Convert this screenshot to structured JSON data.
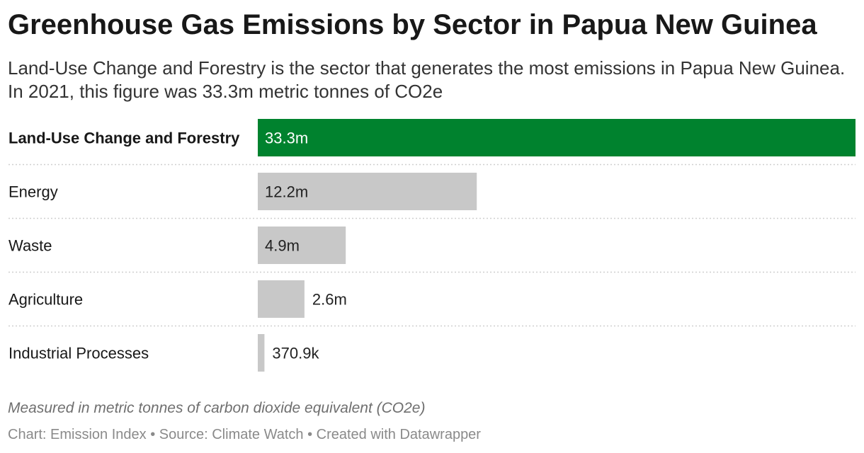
{
  "header": {
    "title": "Greenhouse Gas Emissions by Sector in Papua New Guinea",
    "subtitle": "Land-Use Change and Forestry is the sector that generates the most emissions in Papua New Guinea. In 2021, this figure was 33.3m metric tonnes of CO2e"
  },
  "chart_data": {
    "type": "bar",
    "orientation": "horizontal",
    "categories": [
      "Land-Use Change and Forestry",
      "Energy",
      "Waste",
      "Agriculture",
      "Industrial Processes"
    ],
    "values": [
      33300000,
      12200000,
      4900000,
      2600000,
      370900
    ],
    "value_labels": [
      "33.3m",
      "12.2m",
      "4.9m",
      "2.6m",
      "370.9k"
    ],
    "highlighted_category": "Land-Use Change and Forestry",
    "colors": {
      "highlight": "#00822e",
      "default": "#c8c8c8",
      "label_inside_highlight": "#ffffff",
      "label_default": "#222222",
      "separator": "#cfcfcf"
    },
    "xlim": [
      0,
      33300000
    ],
    "grid": false,
    "legend": "none"
  },
  "notes": "Measured in metric tonnes of carbon dioxide equivalent (CO2e)",
  "footer": "Chart: Emission Index • Source: Climate Watch • Created with Datawrapper"
}
